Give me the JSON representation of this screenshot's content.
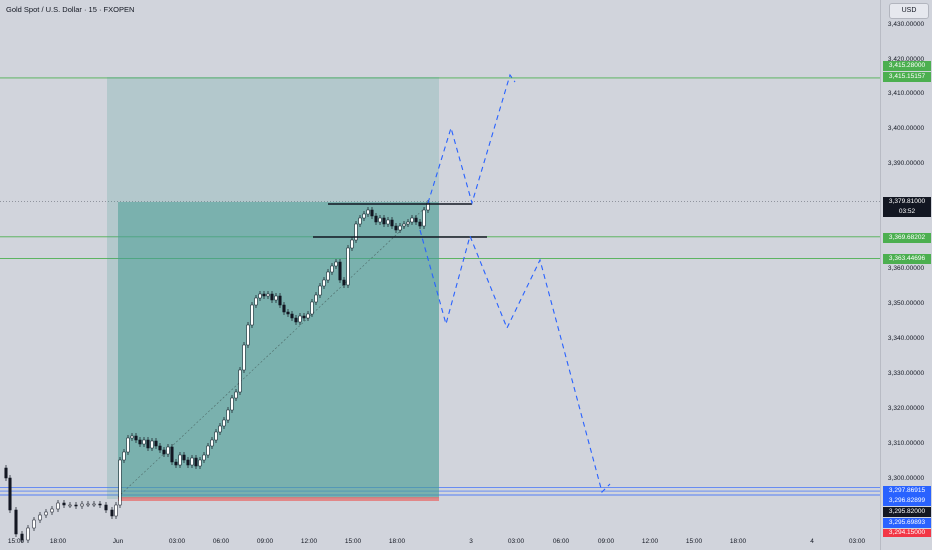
{
  "header": {
    "title": "Gold Spot / U.S. Dollar · 15 · FXOPEN",
    "currency_button": "USD"
  },
  "colors": {
    "background": "#d1d4dc",
    "green_line": "#4caf50",
    "blue_line": "#2962ff",
    "red_tag": "#f23645",
    "current_price_tag": "#131722",
    "forecast_dash": "#2962ff",
    "position_fill": "#4a9f96"
  },
  "price_axis": {
    "labels": [
      "3,430.00000",
      "3,420.00000",
      "3,410.00000",
      "3,400.00000",
      "3,390.00000",
      "3,360.00000",
      "3,350.00000",
      "3,340.00000",
      "3,330.00000",
      "3,320.00000",
      "3,310.00000",
      "3,300.00000"
    ],
    "tags": [
      {
        "text": "3,415.28000",
        "color": "#4caf50"
      },
      {
        "text": "3,415.15157",
        "color": "#4caf50"
      },
      {
        "text": "3,379.81000",
        "color": "#131722"
      },
      {
        "text": "03:52",
        "color": "#131722"
      },
      {
        "text": "3,369.68202",
        "color": "#4caf50"
      },
      {
        "text": "3,363.44696",
        "color": "#4caf50"
      },
      {
        "text": "3,297.86915",
        "color": "#2962ff"
      },
      {
        "text": "3,296.82899",
        "color": "#2962ff"
      },
      {
        "text": "3,295.82000",
        "color": "#131722"
      },
      {
        "text": "3,295.69893",
        "color": "#2962ff"
      },
      {
        "text": "3,294.15000",
        "color": "#f23645"
      }
    ]
  },
  "time_axis": {
    "labels": [
      "15:00",
      "18:00",
      "Jun",
      "03:00",
      "06:00",
      "09:00",
      "12:00",
      "15:00",
      "18:00",
      "3",
      "03:00",
      "06:00",
      "09:00",
      "12:00",
      "15:00",
      "18:00",
      "4",
      "03:00"
    ]
  }
}
